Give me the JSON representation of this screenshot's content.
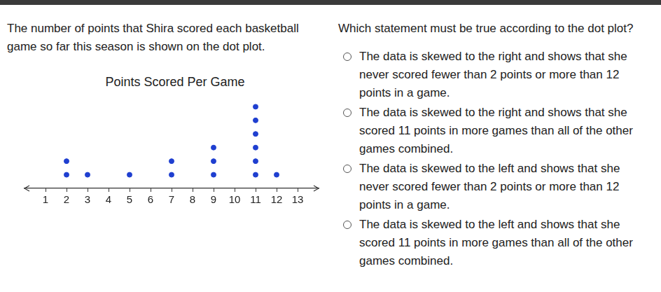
{
  "intro": "The number of points that Shira scored each basketball game so far this season is shown on the dot plot.",
  "question": "Which statement must be true according to the dot plot?",
  "options": [
    "The data is skewed to the right and shows that she never scored fewer than 2 points or more than 12 points in a game.",
    "The data is skewed to the right and shows that she scored 11 points in more games than all of the other games combined.",
    "The data is skewed to the left and shows that she never scored fewer than 2 points or more than 12 points in a game.",
    "The data is skewed to the left and shows that she scored 11 points in more games than all of the other games combined."
  ],
  "chart_data": {
    "type": "dot",
    "title": "Points Scored Per Game",
    "x": [
      2,
      3,
      5,
      7,
      9,
      11,
      12
    ],
    "values": [
      2,
      1,
      1,
      2,
      3,
      6,
      1
    ],
    "color": "#1f3fd0",
    "marker": "circle",
    "xlim": [
      0,
      14
    ],
    "xticks": [
      1,
      2,
      3,
      4,
      5,
      6,
      7,
      8,
      9,
      10,
      11,
      12,
      13
    ],
    "ylim": [
      0,
      7
    ],
    "tick_labels": "x",
    "grid": false
  }
}
